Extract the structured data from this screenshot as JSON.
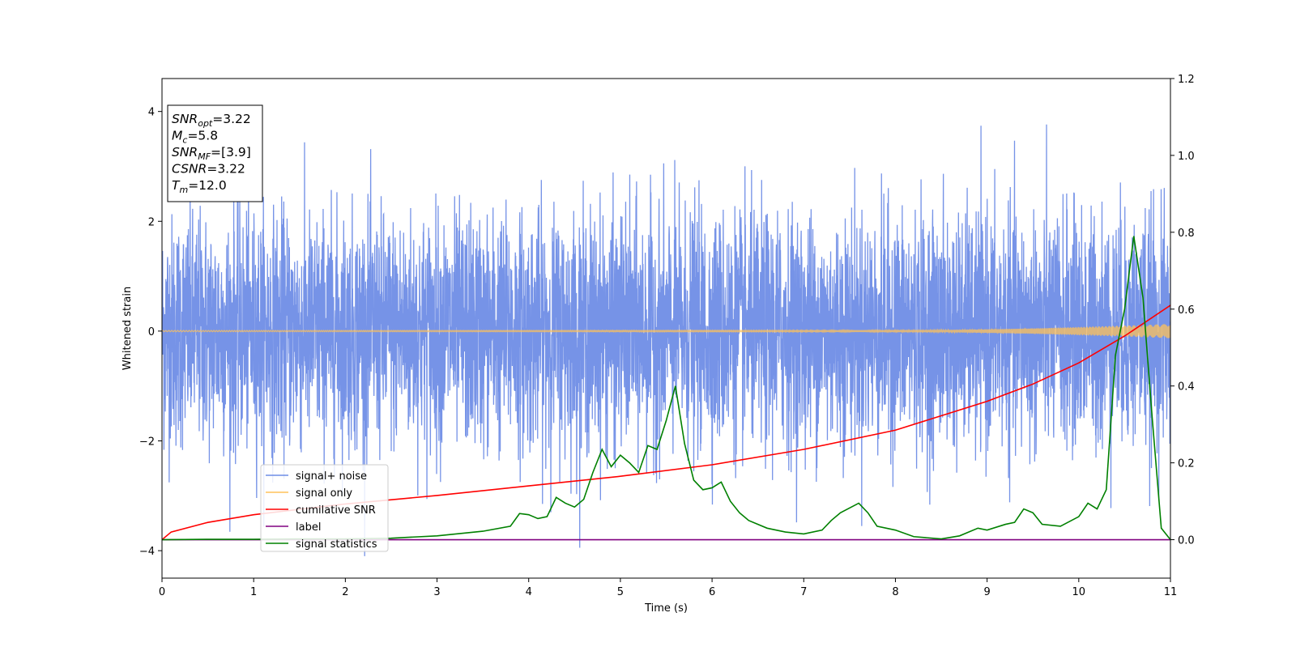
{
  "chart_data": {
    "type": "line",
    "xlabel": "Time (s)",
    "ylabel": "Whitened strain",
    "xlim": [
      0,
      11
    ],
    "ylim": [
      -4.5,
      4.6
    ],
    "y2lim": [
      -0.1,
      1.2
    ],
    "x_ticks": [
      0,
      1,
      2,
      3,
      4,
      5,
      6,
      7,
      8,
      9,
      10,
      11
    ],
    "y_ticks": [
      -4,
      -2,
      0,
      2,
      4
    ],
    "y2_ticks": [
      0.0,
      0.2,
      0.4,
      0.6,
      0.8,
      1.0,
      1.2
    ],
    "x_tick_labels": [
      "0",
      "1",
      "2",
      "3",
      "4",
      "5",
      "6",
      "7",
      "8",
      "9",
      "10",
      "11"
    ],
    "y_tick_labels": [
      "−4",
      "−2",
      "0",
      "2",
      "4"
    ],
    "y2_tick_labels": [
      "0.0",
      "0.2",
      "0.4",
      "0.6",
      "0.8",
      "1.0",
      "1.2"
    ],
    "grid": false,
    "legend_position": "lower-left",
    "annotation": [
      {
        "main": "SNR",
        "sub": "opt",
        "rest": "=3.22"
      },
      {
        "main": "M",
        "sub": "c",
        "rest": "=5.8"
      },
      {
        "main": "SNR",
        "sub": "MF",
        "rest": "=[3.9]"
      },
      {
        "main": "CSNR",
        "sub": "",
        "rest": "=3.22"
      },
      {
        "main": "T",
        "sub": "m",
        "rest": "=12.0"
      }
    ],
    "series": [
      {
        "name": "signal+ noise",
        "axis": "left",
        "color": "#6f8de6",
        "description": "noise-like whitened strain, amplitude roughly ±2.5 with spikes near ±4",
        "envelope": {
          "typical": 2.4,
          "max": 4.2,
          "min": -4.1
        }
      },
      {
        "name": "signal only",
        "axis": "left",
        "color": "#ffc25a",
        "points": [
          [
            0,
            0.0
          ],
          [
            8,
            0.0
          ],
          [
            9.5,
            0.05
          ],
          [
            10.5,
            0.1
          ],
          [
            11,
            0.13
          ]
        ],
        "description": "chirp with amplitude growing toward end"
      },
      {
        "name": "cumilative SNR",
        "axis": "right",
        "color": "#ff0000",
        "points": [
          [
            0,
            0.0
          ],
          [
            0.1,
            0.02
          ],
          [
            0.5,
            0.045
          ],
          [
            1,
            0.065
          ],
          [
            2,
            0.093
          ],
          [
            3,
            0.115
          ],
          [
            4,
            0.14
          ],
          [
            5,
            0.165
          ],
          [
            6,
            0.195
          ],
          [
            7,
            0.235
          ],
          [
            8,
            0.285
          ],
          [
            9,
            0.36
          ],
          [
            9.5,
            0.405
          ],
          [
            10,
            0.46
          ],
          [
            10.5,
            0.53
          ],
          [
            11,
            0.61
          ]
        ]
      },
      {
        "name": "label",
        "axis": "right",
        "color": "#800080",
        "points": [
          [
            0,
            0.0
          ],
          [
            11,
            0.0
          ]
        ]
      },
      {
        "name": "signal statistics",
        "axis": "right",
        "color": "#008000",
        "points": [
          [
            0,
            0.0
          ],
          [
            0.5,
            0.001
          ],
          [
            1,
            0.001
          ],
          [
            1.5,
            0.002
          ],
          [
            2,
            0.002
          ],
          [
            2.5,
            0.004
          ],
          [
            3,
            0.01
          ],
          [
            3.5,
            0.022
          ],
          [
            3.8,
            0.035
          ],
          [
            3.9,
            0.068
          ],
          [
            4.0,
            0.065
          ],
          [
            4.1,
            0.055
          ],
          [
            4.2,
            0.06
          ],
          [
            4.3,
            0.11
          ],
          [
            4.4,
            0.095
          ],
          [
            4.5,
            0.085
          ],
          [
            4.6,
            0.105
          ],
          [
            4.7,
            0.175
          ],
          [
            4.8,
            0.235
          ],
          [
            4.9,
            0.19
          ],
          [
            5.0,
            0.22
          ],
          [
            5.1,
            0.2
          ],
          [
            5.2,
            0.175
          ],
          [
            5.3,
            0.245
          ],
          [
            5.4,
            0.235
          ],
          [
            5.5,
            0.31
          ],
          [
            5.6,
            0.4
          ],
          [
            5.7,
            0.25
          ],
          [
            5.8,
            0.155
          ],
          [
            5.9,
            0.13
          ],
          [
            6.0,
            0.135
          ],
          [
            6.1,
            0.15
          ],
          [
            6.2,
            0.1
          ],
          [
            6.3,
            0.07
          ],
          [
            6.4,
            0.05
          ],
          [
            6.6,
            0.03
          ],
          [
            6.8,
            0.02
          ],
          [
            7.0,
            0.015
          ],
          [
            7.2,
            0.025
          ],
          [
            7.3,
            0.05
          ],
          [
            7.4,
            0.07
          ],
          [
            7.6,
            0.095
          ],
          [
            7.7,
            0.07
          ],
          [
            7.8,
            0.035
          ],
          [
            8.0,
            0.025
          ],
          [
            8.2,
            0.008
          ],
          [
            8.5,
            0.002
          ],
          [
            8.7,
            0.01
          ],
          [
            8.9,
            0.03
          ],
          [
            9.0,
            0.025
          ],
          [
            9.2,
            0.04
          ],
          [
            9.3,
            0.045
          ],
          [
            9.4,
            0.08
          ],
          [
            9.5,
            0.07
          ],
          [
            9.6,
            0.04
          ],
          [
            9.8,
            0.035
          ],
          [
            10.0,
            0.06
          ],
          [
            10.1,
            0.095
          ],
          [
            10.2,
            0.08
          ],
          [
            10.3,
            0.13
          ],
          [
            10.4,
            0.48
          ],
          [
            10.5,
            0.6
          ],
          [
            10.6,
            0.79
          ],
          [
            10.7,
            0.63
          ],
          [
            10.8,
            0.32
          ],
          [
            10.9,
            0.03
          ],
          [
            11.0,
            0.0
          ]
        ]
      }
    ]
  }
}
